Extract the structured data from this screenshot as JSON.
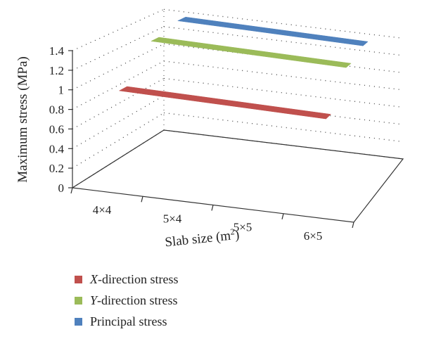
{
  "chart_data": {
    "type": "line",
    "title": "",
    "xlabel": "Slab size (m²)",
    "xlabel_base": "Slab size (m",
    "xlabel_sup": "2",
    "xlabel_close": ")",
    "ylabel": "Maximum stress (MPa)",
    "categories": [
      "4×4",
      "5×4",
      "5×5",
      "6×5"
    ],
    "ylim": [
      0,
      1.4
    ],
    "yticks": [
      "0",
      "0.2",
      "0.4",
      "0.6",
      "0.8",
      "1",
      "1.2",
      "1.4"
    ],
    "grid": true,
    "legend_position": "bottom",
    "series": [
      {
        "name": "X-direction stress",
        "prefix": "X",
        "suffix": "-direction stress",
        "color": "#c0504d",
        "values": [
          0.97,
          0.96,
          0.95,
          0.94
        ]
      },
      {
        "name": "Y-direction stress",
        "prefix": "Y",
        "suffix": "-direction stress",
        "color": "#9bbb59",
        "values": [
          1.32,
          1.31,
          1.3,
          1.29
        ]
      },
      {
        "name": "Principal stress",
        "prefix": "",
        "suffix": "Principal stress",
        "color": "#4f81bd",
        "values": [
          1.4,
          1.39,
          1.38,
          1.37
        ]
      }
    ]
  }
}
